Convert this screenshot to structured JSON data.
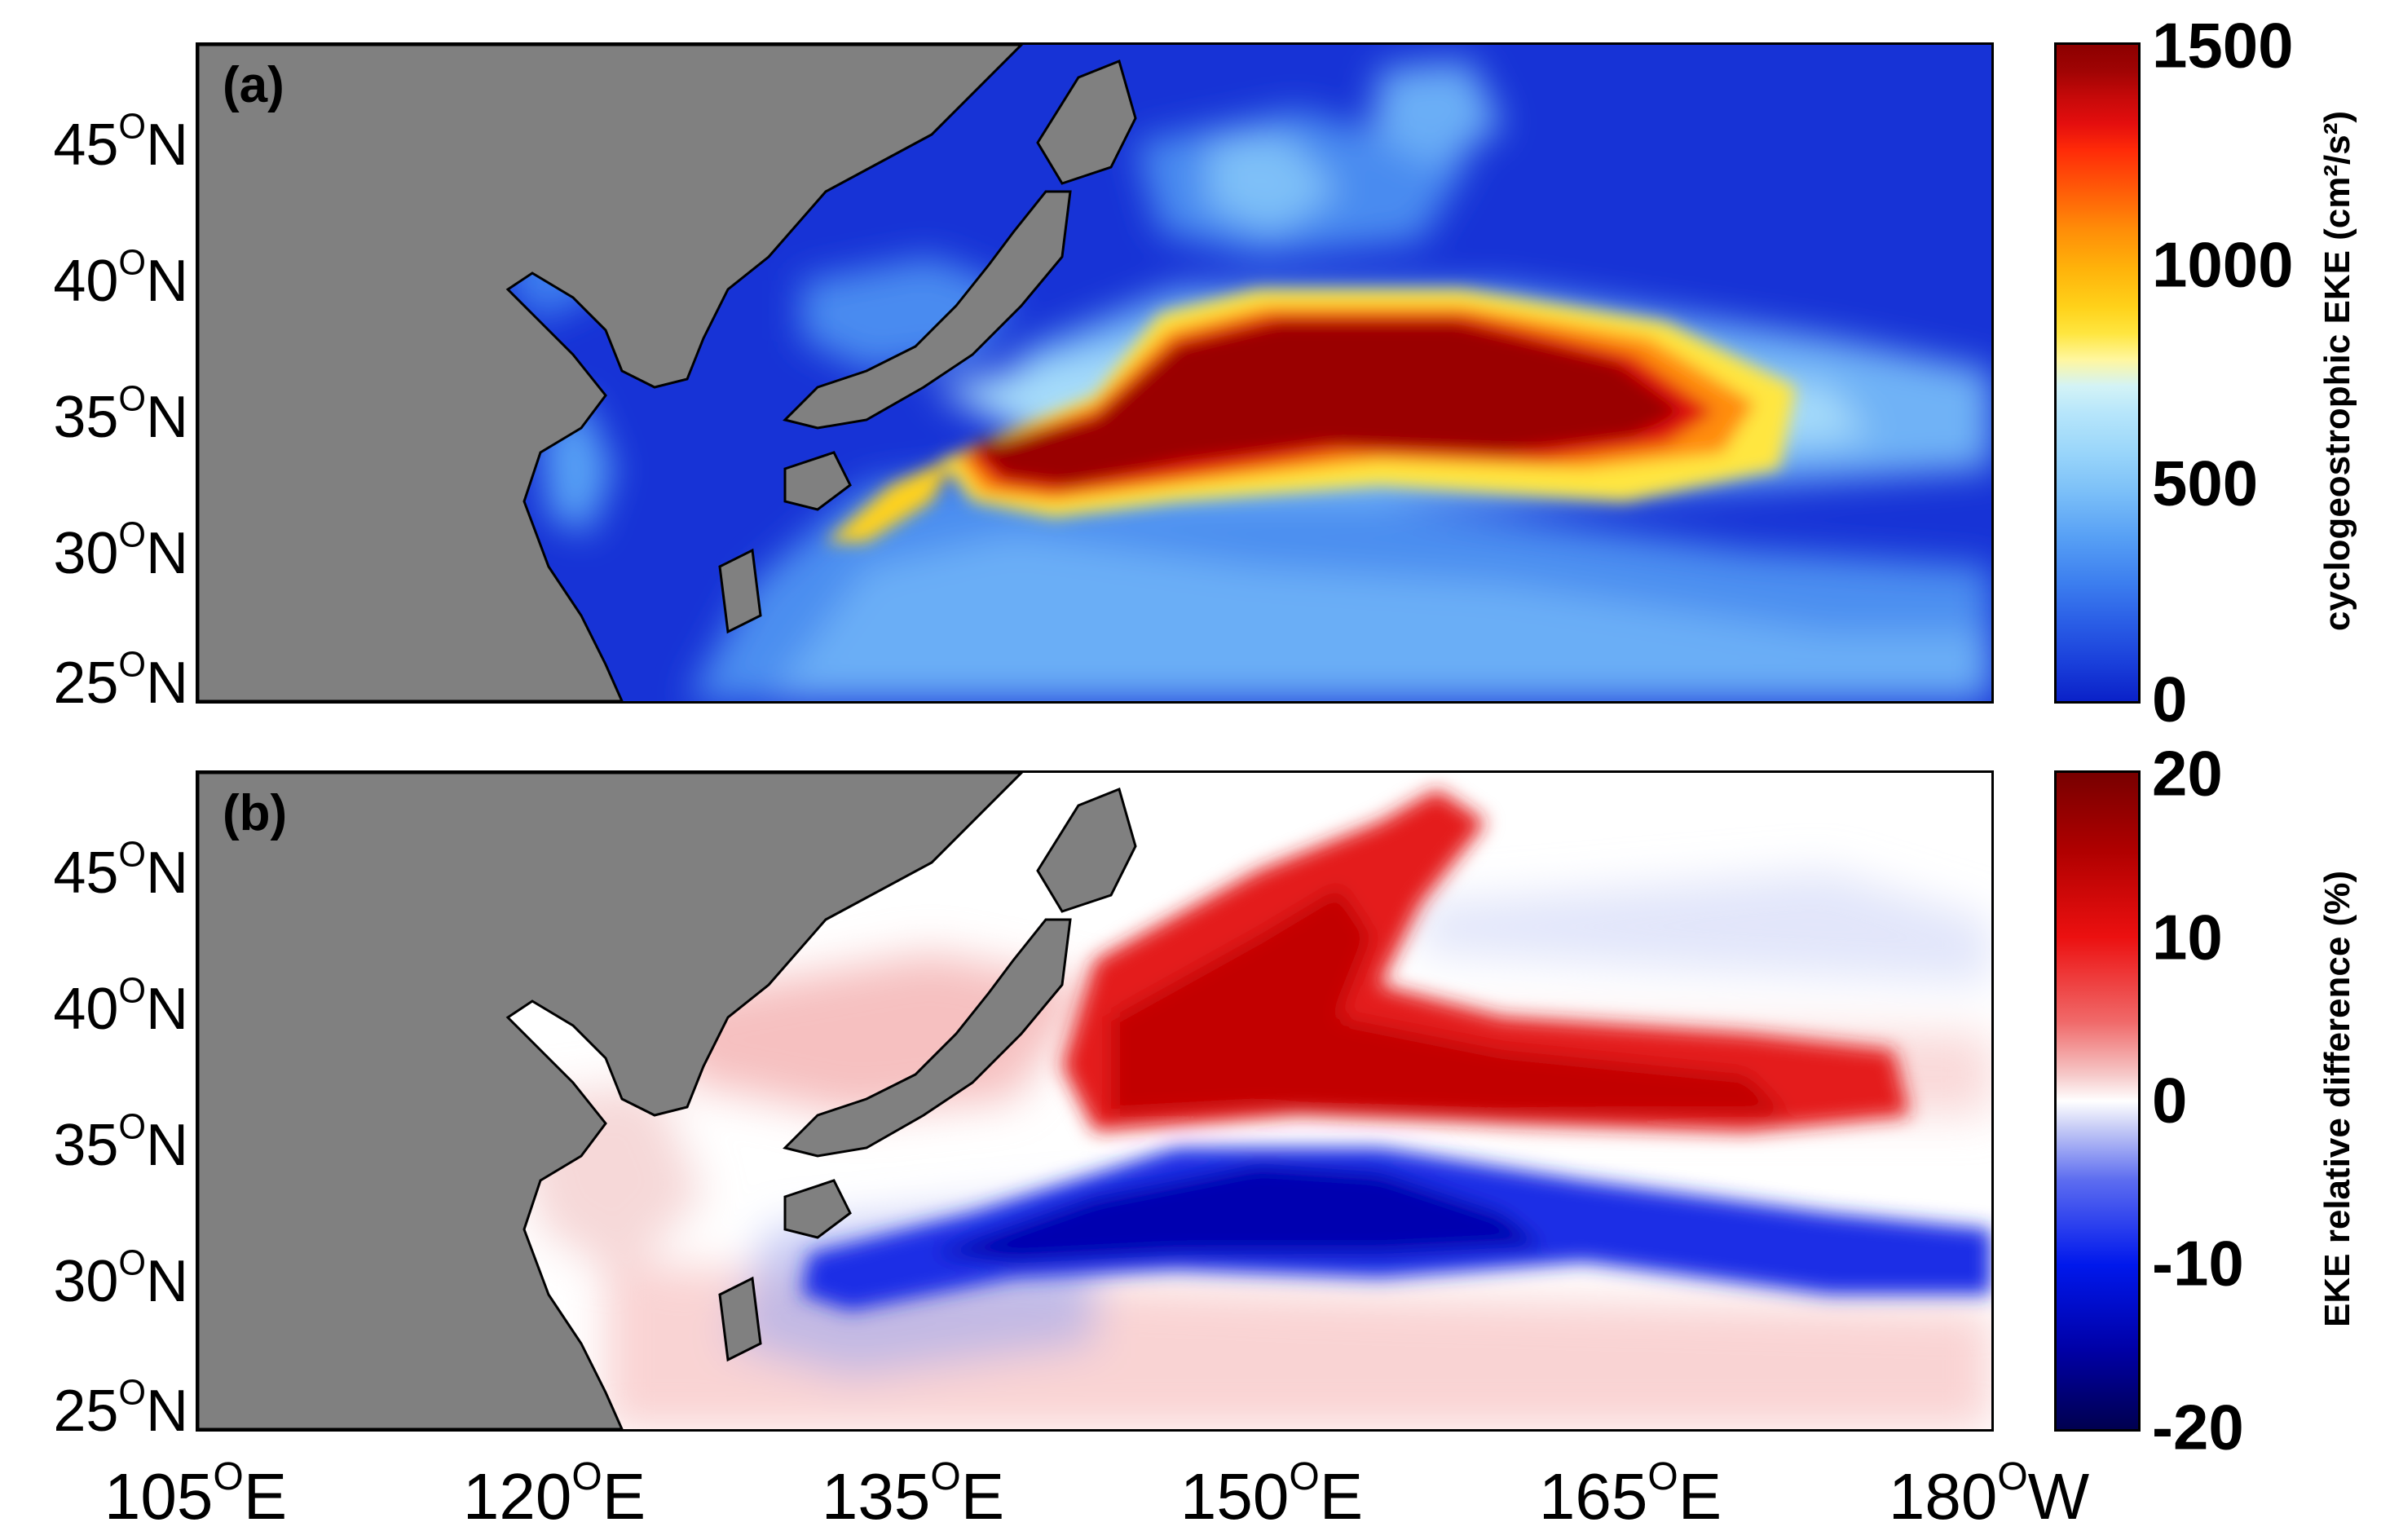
{
  "panels": {
    "a": {
      "label": "(a)",
      "colorbar_title": "cyclogeostrophic EKE (cm²/s²)",
      "colorbar_ticks": [
        "1500",
        "1000",
        "500",
        "0"
      ]
    },
    "b": {
      "label": "(b)",
      "colorbar_title": "EKE relative difference (%)",
      "colorbar_ticks": [
        "20",
        "10",
        "0",
        "-10",
        "-20"
      ]
    }
  },
  "axes": {
    "lat_ticks": [
      {
        "value": "45",
        "sup": "O",
        "hemi": "N"
      },
      {
        "value": "40",
        "sup": "O",
        "hemi": "N"
      },
      {
        "value": "35",
        "sup": "O",
        "hemi": "N"
      },
      {
        "value": "30",
        "sup": "O",
        "hemi": "N"
      },
      {
        "value": "25",
        "sup": "O",
        "hemi": "N"
      }
    ],
    "lon_ticks": [
      {
        "value": "105",
        "sup": "O",
        "hemi": "E"
      },
      {
        "value": "120",
        "sup": "O",
        "hemi": "E"
      },
      {
        "value": "135",
        "sup": "O",
        "hemi": "E"
      },
      {
        "value": "150",
        "sup": "O",
        "hemi": "E"
      },
      {
        "value": "165",
        "sup": "O",
        "hemi": "E"
      },
      {
        "value": "180",
        "sup": "O",
        "hemi": "W"
      }
    ]
  },
  "map_data": {
    "region": {
      "lon_range": [
        105,
        180
      ],
      "lat_range": [
        24,
        48
      ]
    },
    "land_color": "#808080",
    "panel_a": {
      "variable": "cyclogeostrophic EKE",
      "units": "cm²/s²",
      "range": [
        0,
        1500
      ],
      "colormap": [
        "#0a21c8",
        "#3c7eef",
        "#9ad6fa",
        "#ffe640",
        "#ff8c08",
        "#8c0000"
      ]
    },
    "panel_b": {
      "variable": "EKE relative difference",
      "units": "%",
      "range": [
        -20,
        20
      ],
      "colormap": [
        "#00004f",
        "#0018ec",
        "#ffffff",
        "#ec1010",
        "#780000"
      ]
    }
  }
}
